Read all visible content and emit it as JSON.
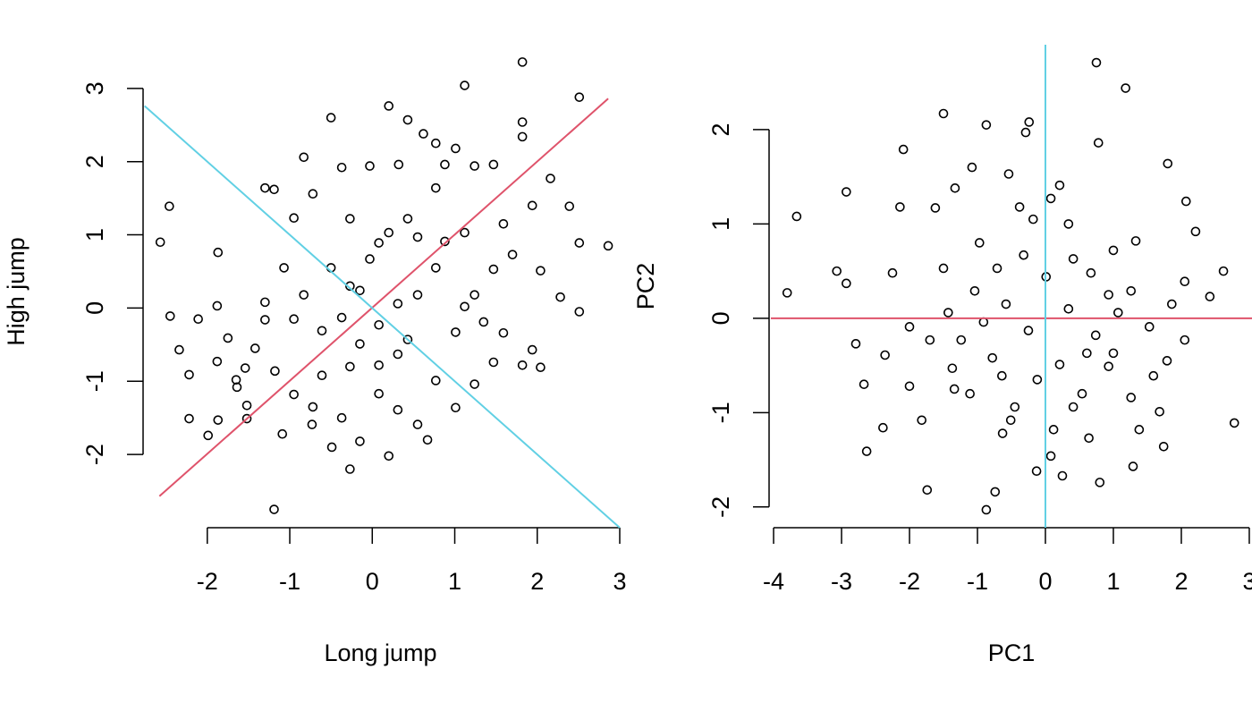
{
  "chart_data": [
    {
      "type": "scatter",
      "xlabel": "Long jump",
      "ylabel": "High jump",
      "xlim": [
        -2.8,
        3.0
      ],
      "ylim": [
        -3,
        3.45
      ],
      "xticks": [
        -2,
        -1,
        0,
        1,
        2,
        3
      ],
      "yticks": [
        -2,
        -1,
        0,
        1,
        2,
        3
      ],
      "point_color": "#000000",
      "x": [
        -2.57,
        -2.46,
        -2.45,
        -2.34,
        -2.22,
        -2.22,
        -2.11,
        -1.99,
        -1.88,
        -1.88,
        -1.87,
        -1.87,
        -1.75,
        -1.65,
        -1.64,
        -1.52,
        -1.52,
        -1.3,
        -1.19,
        -1.19,
        -1.3,
        -1.09,
        -0.95,
        -0.83,
        -0.72,
        -0.5,
        -0.37,
        -0.03,
        0.2,
        0.32,
        0.43,
        0.62,
        0.77,
        0.88,
        1.01,
        1.12,
        1.24,
        1.47,
        1.82,
        1.82,
        1.82,
        2.16,
        2.39,
        2.51,
        2.51,
        2.86,
        2.51,
        2.28,
        1.94,
        2.04,
        2.04,
        1.94,
        1.82,
        1.59,
        1.47,
        1.24,
        1.01,
        0.67,
        0.55,
        0.2,
        -0.27,
        -0.15,
        -0.49,
        -0.73,
        -0.95,
        -0.61,
        -0.27,
        0.08,
        0.31,
        0.77,
        1.01,
        1.24,
        1.47,
        1.12,
        0.88,
        0.55,
        0.2,
        -0.03,
        -0.27,
        -0.5,
        -0.83,
        -1.07,
        -1.3,
        -1.42,
        -1.54,
        -0.95,
        -0.61,
        -0.37,
        -0.15,
        0.08,
        0.43,
        0.55,
        0.77,
        1.12,
        1.35,
        1.59,
        1.7,
        0.08,
        0.31,
        -0.37,
        -0.72,
        -1.18,
        0.31,
        -0.15,
        0.08,
        -0.27,
        0.43,
        0.77
      ],
      "values": [
        0.9,
        1.39,
        -0.11,
        -0.57,
        -0.91,
        -1.51,
        -0.15,
        -1.74,
        0.03,
        -0.73,
        0.76,
        -1.53,
        -0.41,
        -0.98,
        -1.08,
        -1.33,
        -1.51,
        1.64,
        1.62,
        -2.75,
        0.08,
        -1.72,
        1.23,
        2.06,
        1.56,
        2.6,
        1.92,
        1.94,
        2.76,
        1.96,
        2.57,
        2.38,
        2.25,
        1.96,
        2.18,
        3.04,
        1.94,
        1.96,
        3.36,
        2.54,
        2.34,
        1.77,
        1.39,
        2.88,
        0.89,
        0.85,
        -0.05,
        0.15,
        1.4,
        0.51,
        -0.81,
        -0.57,
        -0.78,
        -0.34,
        -0.74,
        -1.04,
        -1.36,
        -1.8,
        -1.59,
        -2.02,
        -2.2,
        -1.82,
        -1.9,
        -1.59,
        -1.18,
        -0.92,
        -0.8,
        -0.78,
        -0.63,
        -0.99,
        -0.33,
        0.18,
        0.53,
        1.03,
        0.91,
        0.97,
        1.03,
        0.67,
        0.3,
        0.55,
        0.18,
        0.55,
        -0.16,
        -0.55,
        -0.82,
        -0.15,
        -0.31,
        -0.13,
        -0.49,
        -0.23,
        -0.43,
        0.18,
        0.55,
        0.02,
        -0.19,
        1.15,
        0.73,
        -1.17,
        -1.39,
        -1.5,
        -1.35,
        -0.86,
        0.06,
        0.24,
        0.89,
        1.22,
        1.22,
        1.64
      ],
      "lines": [
        {
          "color": "#DF536B",
          "x": [
            -2.58,
            2.86
          ],
          "values": [
            -2.57,
            2.86
          ]
        },
        {
          "color": "#61D0E4",
          "x": [
            -2.76,
            3.0
          ],
          "values": [
            2.76,
            -3.0
          ]
        }
      ]
    },
    {
      "type": "scatter",
      "xlabel": "PC1",
      "ylabel": "PC2",
      "xlim": [
        -4.04,
        3.04
      ],
      "ylim": [
        -2.22,
        2.9
      ],
      "xticks": [
        -4,
        -3,
        -2,
        -1,
        0,
        1,
        2,
        3
      ],
      "yticks": [
        -2,
        -1,
        0,
        1,
        2
      ],
      "point_color": "#000000",
      "x": [
        -3.8,
        -3.66,
        -3.07,
        -2.93,
        -2.93,
        -2.79,
        -2.67,
        -2.63,
        -2.39,
        -2.36,
        -2.25,
        -2.14,
        -2.09,
        -2.0,
        -2.0,
        -1.82,
        -1.74,
        -1.62,
        -1.5,
        -1.33,
        -1.37,
        -1.34,
        -1.08,
        -0.97,
        -0.87,
        -0.87,
        -0.74,
        -0.63,
        -0.54,
        -0.29,
        -0.24,
        -0.13,
        0.08,
        0.12,
        0.25,
        0.75,
        0.78,
        1.18,
        0.8,
        0.64,
        1.29,
        1.38,
        1.68,
        1.74,
        1.8,
        2.07,
        2.21,
        2.62,
        2.78,
        2.42,
        2.05,
        1.79,
        1.53,
        1.26,
        1.0,
        0.67,
        0.34,
        0.21,
        0.08,
        -0.38,
        -0.71,
        -1.04,
        -1.43,
        -1.7,
        -1.11,
        -0.78,
        -0.45,
        -0.12,
        0.21,
        0.54,
        0.93,
        1.26,
        1.59,
        1.86,
        1.07,
        0.74,
        0.34,
        -0.25,
        -0.58,
        -0.91,
        -0.32,
        0.41,
        1.33,
        0.61,
        0.93,
        0.01,
        -1.5,
        -1.24,
        -0.64,
        -0.51,
        0.41,
        1.0,
        2.05,
        -0.18
      ],
      "values": [
        0.27,
        1.08,
        0.5,
        1.34,
        0.37,
        -0.27,
        -0.7,
        -1.41,
        -1.16,
        -0.39,
        0.48,
        1.18,
        1.79,
        -0.09,
        -0.72,
        -1.08,
        -1.82,
        1.17,
        2.17,
        1.38,
        -0.53,
        -0.75,
        1.6,
        0.8,
        2.05,
        -2.03,
        -1.84,
        -1.22,
        1.53,
        1.97,
        2.08,
        -1.62,
        -1.46,
        -1.18,
        -1.67,
        2.71,
        1.86,
        2.44,
        -1.74,
        -1.27,
        -1.57,
        -1.18,
        -0.99,
        -1.36,
        1.64,
        1.24,
        0.92,
        0.5,
        -1.11,
        0.23,
        -0.23,
        -0.45,
        -0.09,
        0.29,
        0.72,
        0.48,
        1.0,
        1.41,
        1.27,
        1.18,
        0.53,
        0.29,
        0.06,
        -0.23,
        -0.8,
        -0.42,
        -0.94,
        -0.65,
        -0.49,
        -0.8,
        -0.51,
        -0.84,
        -0.61,
        0.15,
        0.06,
        -0.18,
        0.1,
        -0.13,
        0.15,
        -0.04,
        0.67,
        0.63,
        0.82,
        -0.37,
        0.25,
        0.44,
        0.53,
        -0.23,
        -0.61,
        -1.08,
        -0.94,
        -0.37,
        0.39,
        1.05
      ],
      "lines": [
        {
          "color": "#DF536B",
          "x": [
            -4.04,
            3.04
          ],
          "values": [
            0,
            0
          ]
        },
        {
          "color": "#61D0E4",
          "x": [
            0,
            0
          ],
          "values": [
            -2.22,
            2.9
          ]
        }
      ]
    }
  ]
}
